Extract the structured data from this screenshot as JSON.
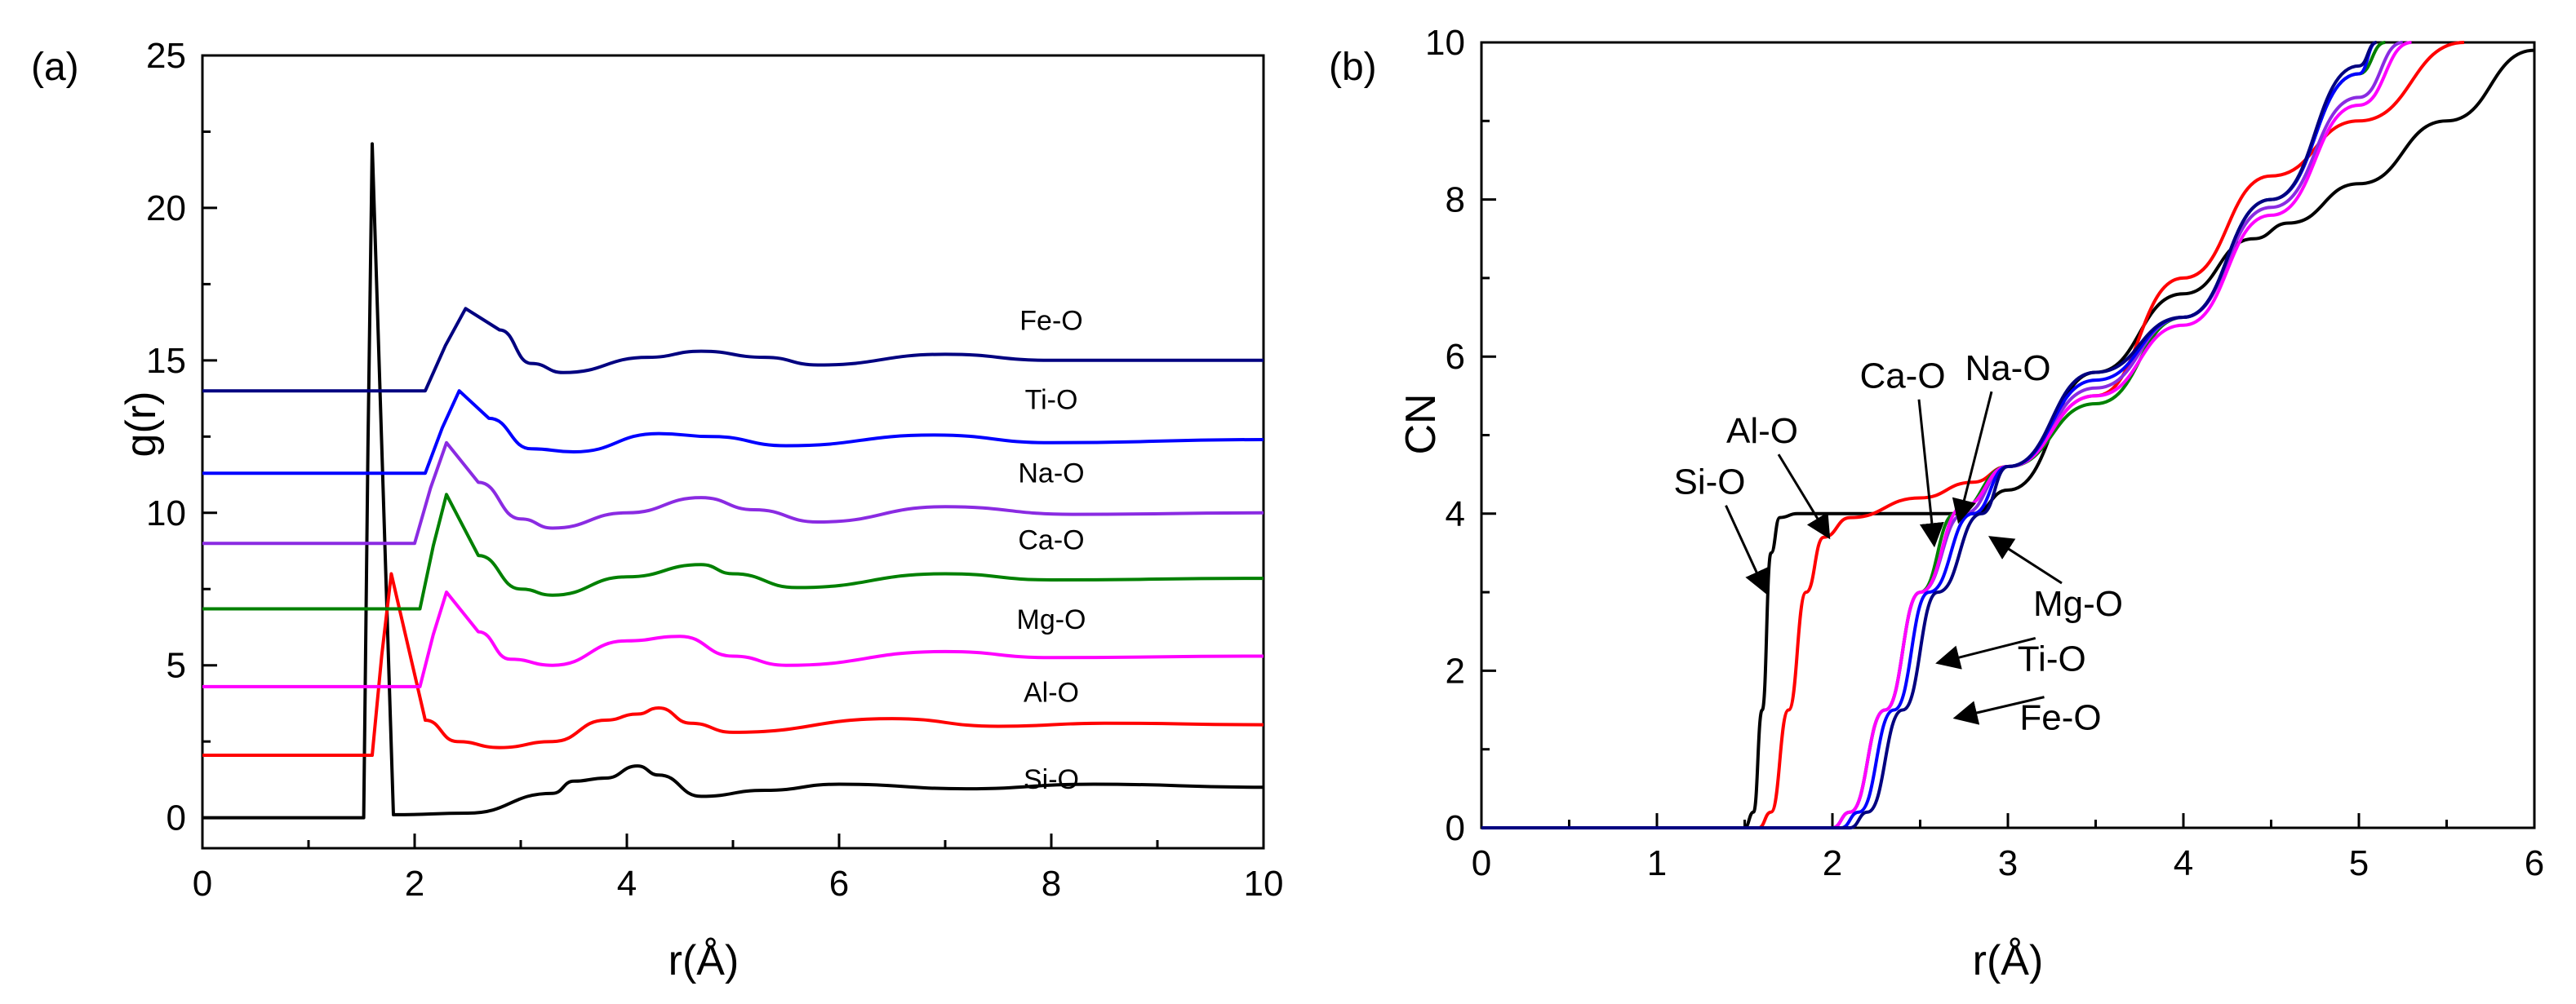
{
  "chart_data": [
    {
      "type": "line",
      "panel_label": "(a)",
      "xlabel": "r(Å)",
      "ylabel": "g(r)",
      "xlim": [
        0,
        10
      ],
      "ylim": [
        -1,
        25
      ],
      "xticks": [
        0,
        2,
        4,
        6,
        8,
        10
      ],
      "yticks": [
        0,
        5,
        10,
        15,
        20,
        25
      ],
      "series": [
        {
          "name": "Si-O",
          "color": "#000000",
          "offset": 0,
          "onset": 1.52,
          "peak_r": 1.6,
          "peak_g": 22.1,
          "points": [
            [
              1.8,
              0.1
            ],
            [
              2.5,
              0.15
            ],
            [
              3.3,
              0.8
            ],
            [
              3.5,
              1.2
            ],
            [
              3.8,
              1.3
            ],
            [
              4.1,
              1.7
            ],
            [
              4.3,
              1.4
            ],
            [
              4.7,
              0.7
            ],
            [
              5.3,
              0.9
            ],
            [
              6.0,
              1.1
            ],
            [
              7.2,
              0.95
            ],
            [
              8.4,
              1.1
            ],
            [
              10.0,
              1.0
            ]
          ]
        },
        {
          "name": "Al-O",
          "color": "#ff0000",
          "offset": 2.05,
          "onset": 1.6,
          "peak_r": 1.78,
          "peak_g": 8.0,
          "points": [
            [
              2.1,
              3.2
            ],
            [
              2.4,
              2.5
            ],
            [
              2.8,
              2.3
            ],
            [
              3.3,
              2.5
            ],
            [
              3.8,
              3.2
            ],
            [
              4.1,
              3.4
            ],
            [
              4.3,
              3.6
            ],
            [
              4.6,
              3.1
            ],
            [
              5.0,
              2.8
            ],
            [
              6.5,
              3.25
            ],
            [
              7.5,
              3.0
            ],
            [
              8.5,
              3.1
            ],
            [
              10.0,
              3.05
            ]
          ]
        },
        {
          "name": "Mg-O",
          "color": "#ff00ff",
          "offset": 4.3,
          "onset": 2.05,
          "peak_r": 2.3,
          "peak_g": 7.4,
          "points": [
            [
              2.6,
              6.1
            ],
            [
              2.9,
              5.2
            ],
            [
              3.3,
              5.0
            ],
            [
              4.0,
              5.8
            ],
            [
              4.5,
              5.95
            ],
            [
              5.0,
              5.3
            ],
            [
              5.5,
              5.0
            ],
            [
              7.0,
              5.45
            ],
            [
              8.0,
              5.25
            ],
            [
              10.0,
              5.3
            ]
          ]
        },
        {
          "name": "Ca-O",
          "color": "#008000",
          "offset": 6.85,
          "onset": 2.05,
          "peak_r": 2.3,
          "peak_g": 10.6,
          "points": [
            [
              2.6,
              8.6
            ],
            [
              3.0,
              7.5
            ],
            [
              3.3,
              7.3
            ],
            [
              4.0,
              7.9
            ],
            [
              4.7,
              8.3
            ],
            [
              5.0,
              8.0
            ],
            [
              5.6,
              7.55
            ],
            [
              7.0,
              8.0
            ],
            [
              8.0,
              7.8
            ],
            [
              10.0,
              7.85
            ]
          ]
        },
        {
          "name": "Na-O",
          "color": "#8a2be2",
          "offset": 9.0,
          "onset": 2.0,
          "peak_r": 2.3,
          "peak_g": 12.3,
          "points": [
            [
              2.6,
              11.0
            ],
            [
              3.0,
              9.8
            ],
            [
              3.3,
              9.5
            ],
            [
              4.0,
              10.0
            ],
            [
              4.7,
              10.5
            ],
            [
              5.2,
              10.1
            ],
            [
              5.8,
              9.7
            ],
            [
              7.0,
              10.2
            ],
            [
              8.2,
              9.95
            ],
            [
              10.0,
              10.0
            ]
          ]
        },
        {
          "name": "Ti-O",
          "color": "#0000ff",
          "offset": 11.3,
          "onset": 2.1,
          "peak_r": 2.42,
          "peak_g": 14.0,
          "points": [
            [
              2.7,
              13.1
            ],
            [
              3.1,
              12.1
            ],
            [
              3.5,
              12.0
            ],
            [
              4.3,
              12.6
            ],
            [
              4.8,
              12.5
            ],
            [
              5.5,
              12.2
            ],
            [
              6.9,
              12.55
            ],
            [
              8.0,
              12.3
            ],
            [
              10.0,
              12.4
            ]
          ]
        },
        {
          "name": "Fe-O",
          "color": "#000080",
          "offset": 14.0,
          "onset": 2.1,
          "peak_r": 2.48,
          "peak_g": 16.7,
          "points": [
            [
              2.8,
              16.0
            ],
            [
              3.1,
              14.9
            ],
            [
              3.4,
              14.6
            ],
            [
              4.2,
              15.1
            ],
            [
              4.7,
              15.3
            ],
            [
              5.3,
              15.1
            ],
            [
              5.8,
              14.85
            ],
            [
              7.0,
              15.2
            ],
            [
              8.0,
              15.0
            ],
            [
              10.0,
              15.0
            ]
          ]
        }
      ]
    },
    {
      "type": "line",
      "panel_label": "(b)",
      "xlabel": "r(Å)",
      "ylabel": "CN",
      "xlim": [
        0,
        6
      ],
      "ylim": [
        0,
        10
      ],
      "xticks": [
        0,
        1,
        2,
        3,
        4,
        5,
        6
      ],
      "yticks": [
        0,
        2,
        4,
        6,
        8,
        10
      ],
      "series": [
        {
          "name": "Si-O",
          "color": "#000000",
          "points": [
            [
              0,
              0
            ],
            [
              1.5,
              0
            ],
            [
              1.55,
              0.2
            ],
            [
              1.6,
              1.5
            ],
            [
              1.65,
              3.5
            ],
            [
              1.7,
              3.95
            ],
            [
              1.8,
              4.0
            ],
            [
              2.8,
              4.0
            ],
            [
              3.0,
              4.3
            ],
            [
              3.5,
              5.8
            ],
            [
              4.0,
              6.8
            ],
            [
              4.4,
              7.5
            ],
            [
              4.6,
              7.7
            ],
            [
              5.0,
              8.2
            ],
            [
              5.5,
              9.0
            ],
            [
              6.0,
              9.9
            ]
          ]
        },
        {
          "name": "Al-O",
          "color": "#ff0000",
          "points": [
            [
              0,
              0
            ],
            [
              1.58,
              0
            ],
            [
              1.65,
              0.2
            ],
            [
              1.75,
              1.5
            ],
            [
              1.85,
              3.0
            ],
            [
              1.95,
              3.7
            ],
            [
              2.1,
              3.95
            ],
            [
              2.5,
              4.2
            ],
            [
              2.8,
              4.4
            ],
            [
              3.0,
              4.6
            ],
            [
              3.5,
              5.5
            ],
            [
              4.0,
              7.0
            ],
            [
              4.5,
              8.3
            ],
            [
              5.0,
              9.0
            ],
            [
              5.6,
              10.0
            ]
          ]
        },
        {
          "name": "Ca-O",
          "color": "#008000",
          "points": [
            [
              0,
              0
            ],
            [
              2.0,
              0
            ],
            [
              2.1,
              0.2
            ],
            [
              2.3,
              1.5
            ],
            [
              2.5,
              3.0
            ],
            [
              2.7,
              4.0
            ],
            [
              3.0,
              4.6
            ],
            [
              3.5,
              5.4
            ],
            [
              4.0,
              6.5
            ],
            [
              4.5,
              8.0
            ],
            [
              5.0,
              9.6
            ],
            [
              5.15,
              10.0
            ]
          ]
        },
        {
          "name": "Na-O",
          "color": "#8a2be2",
          "points": [
            [
              0,
              0
            ],
            [
              2.0,
              0
            ],
            [
              2.1,
              0.2
            ],
            [
              2.3,
              1.5
            ],
            [
              2.5,
              3.0
            ],
            [
              2.75,
              4.0
            ],
            [
              3.0,
              4.6
            ],
            [
              3.5,
              5.6
            ],
            [
              4.0,
              6.5
            ],
            [
              4.5,
              7.9
            ],
            [
              5.0,
              9.3
            ],
            [
              5.25,
              10.0
            ]
          ]
        },
        {
          "name": "Mg-O",
          "color": "#ff00ff",
          "points": [
            [
              0,
              0
            ],
            [
              2.0,
              0
            ],
            [
              2.1,
              0.2
            ],
            [
              2.3,
              1.5
            ],
            [
              2.5,
              3.0
            ],
            [
              2.75,
              4.1
            ],
            [
              3.0,
              4.6
            ],
            [
              3.5,
              5.5
            ],
            [
              4.0,
              6.4
            ],
            [
              4.5,
              7.8
            ],
            [
              5.0,
              9.2
            ],
            [
              5.3,
              10.0
            ]
          ]
        },
        {
          "name": "Ti-O",
          "color": "#0000ff",
          "points": [
            [
              0,
              0
            ],
            [
              2.05,
              0
            ],
            [
              2.15,
              0.2
            ],
            [
              2.35,
              1.5
            ],
            [
              2.55,
              3.0
            ],
            [
              2.8,
              4.0
            ],
            [
              3.0,
              4.6
            ],
            [
              3.5,
              5.7
            ],
            [
              4.0,
              6.5
            ],
            [
              4.5,
              8.0
            ],
            [
              5.0,
              9.6
            ],
            [
              5.1,
              10.0
            ]
          ]
        },
        {
          "name": "Fe-O",
          "color": "#000080",
          "points": [
            [
              0,
              0
            ],
            [
              2.1,
              0
            ],
            [
              2.2,
              0.2
            ],
            [
              2.4,
              1.5
            ],
            [
              2.6,
              3.0
            ],
            [
              2.85,
              4.0
            ],
            [
              3.0,
              4.6
            ],
            [
              3.5,
              5.8
            ],
            [
              4.0,
              6.5
            ],
            [
              4.5,
              8.0
            ],
            [
              5.0,
              9.7
            ],
            [
              5.1,
              10.0
            ]
          ]
        }
      ],
      "annotations": [
        {
          "text": "Si-O",
          "label_r": 1.3,
          "label_cn": 4.25,
          "arrow_to_r": 1.62,
          "arrow_to_cn": 3.0
        },
        {
          "text": "Al-O",
          "label_r": 1.6,
          "label_cn": 4.9,
          "arrow_to_r": 1.98,
          "arrow_to_cn": 3.7
        },
        {
          "text": "Ca-O",
          "label_r": 2.4,
          "label_cn": 5.6,
          "arrow_to_r": 2.58,
          "arrow_to_cn": 3.6
        },
        {
          "text": "Na-O",
          "label_r": 3.0,
          "label_cn": 5.7,
          "arrow_to_r": 2.72,
          "arrow_to_cn": 3.9
        },
        {
          "text": "Mg-O",
          "label_r": 3.4,
          "label_cn": 2.7,
          "arrow_to_r": 2.9,
          "arrow_to_cn": 3.7
        },
        {
          "text": "Ti-O",
          "label_r": 3.25,
          "label_cn": 2.0,
          "arrow_to_r": 2.6,
          "arrow_to_cn": 2.1
        },
        {
          "text": "Fe-O",
          "label_r": 3.3,
          "label_cn": 1.25,
          "arrow_to_r": 2.7,
          "arrow_to_cn": 1.4
        }
      ]
    }
  ]
}
